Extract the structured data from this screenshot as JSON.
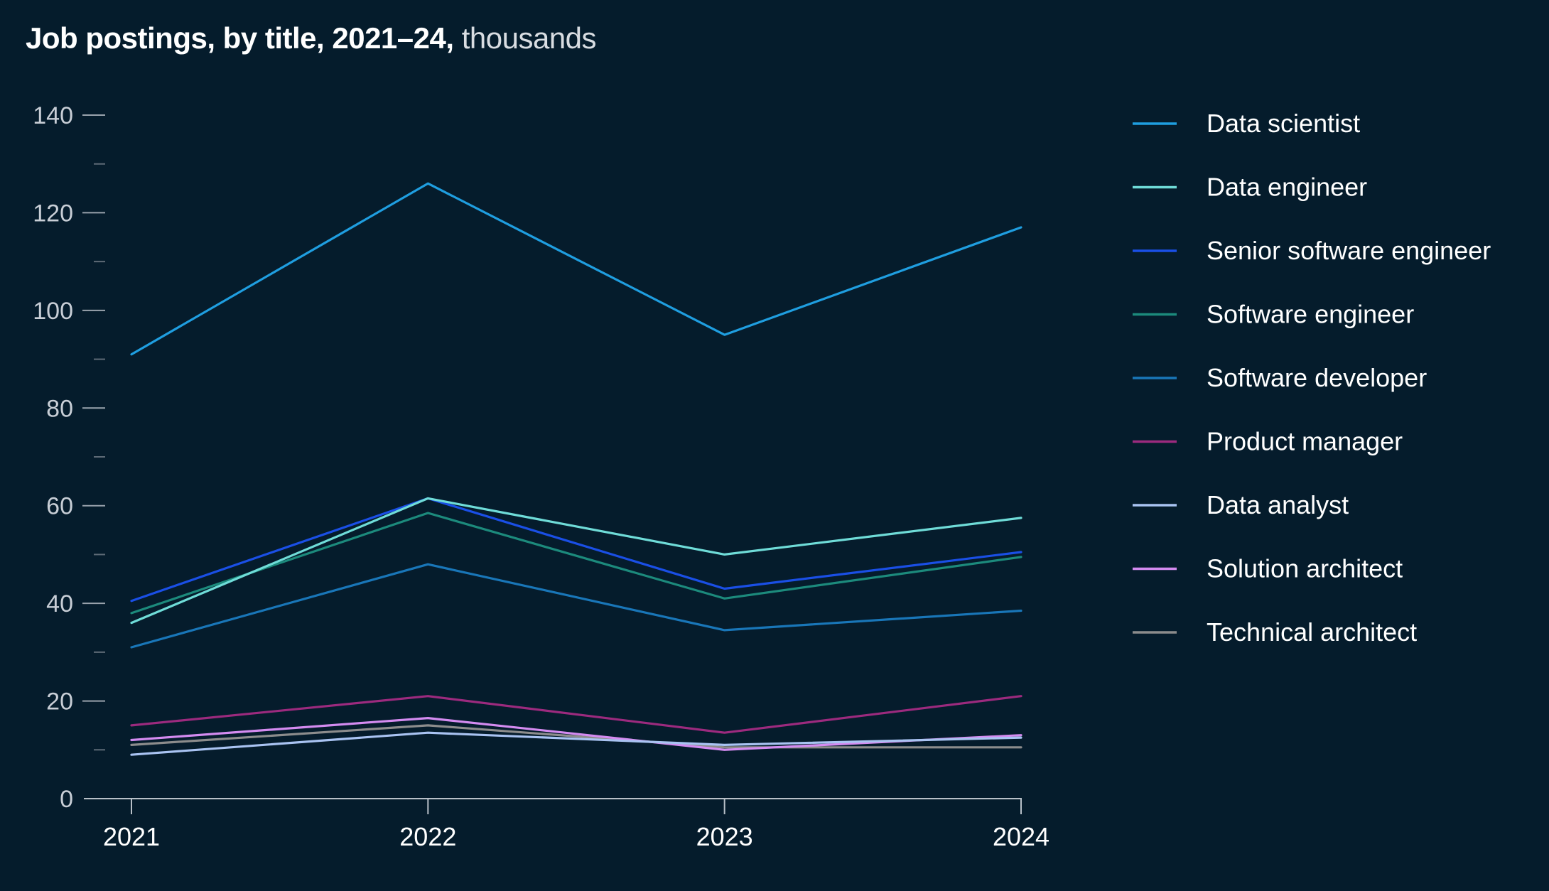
{
  "chart_data": {
    "type": "line",
    "title": "Job postings, by title, 2021–24,",
    "unit_label": "thousands",
    "xlabel": "",
    "ylabel": "",
    "x": [
      "2021",
      "2022",
      "2023",
      "2024"
    ],
    "ylim": [
      0,
      140
    ],
    "yticks": [
      0,
      20,
      40,
      60,
      80,
      100,
      120,
      140
    ],
    "grid": false,
    "legend_position": "right",
    "series": [
      {
        "name": "Data scientist",
        "color": "#1f9ee0",
        "values": [
          91,
          126,
          95,
          117
        ]
      },
      {
        "name": "Data engineer",
        "color": "#6fdcd8",
        "values": [
          36,
          61.5,
          50,
          57.5
        ]
      },
      {
        "name": "Senior software engineer",
        "color": "#1a4fe6",
        "values": [
          40.5,
          61.5,
          43,
          50.5
        ]
      },
      {
        "name": "Software engineer",
        "color": "#1c8a7c",
        "values": [
          38,
          58.5,
          41,
          49.5
        ]
      },
      {
        "name": "Software developer",
        "color": "#1976b8",
        "values": [
          31,
          48,
          34.5,
          38.5
        ]
      },
      {
        "name": "Product manager",
        "color": "#9c2a7e",
        "values": [
          15,
          21,
          13.5,
          21
        ]
      },
      {
        "name": "Data analyst",
        "color": "#a9c3f2",
        "values": [
          9,
          13.5,
          11,
          12.5
        ]
      },
      {
        "name": "Solution architect",
        "color": "#d48bf0",
        "values": [
          12,
          16.5,
          10,
          13
        ]
      },
      {
        "name": "Technical architect",
        "color": "#8c8c8c",
        "values": [
          11,
          15,
          10.5,
          10.5
        ]
      }
    ]
  }
}
